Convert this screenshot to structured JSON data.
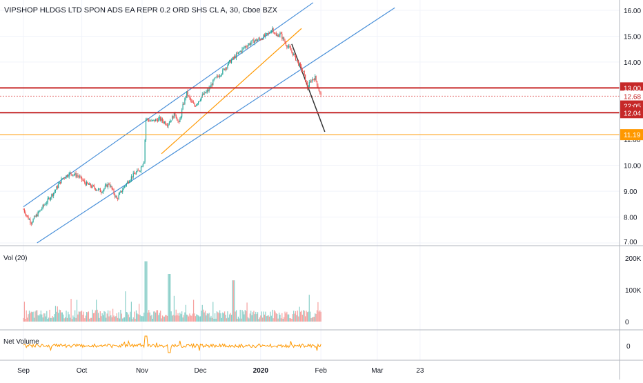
{
  "symbol_title": "VIPSHOP HLDGS LTD SPON ADS EA REPR 0.2 ORD SHS CL A, 30, Cboe BZX",
  "vol_label": "Vol (20)",
  "net_volume_label": "Net Volume",
  "chart_data": {
    "type": "candlestick",
    "title": "VIPSHOP HLDGS LTD SPON ADS EA REPR 0.2 ORD SHS CL A, 30, Cboe BZX",
    "price_axis": {
      "min": 7.0,
      "max": 16.0,
      "ticks": [
        "16.00",
        "15.00",
        "14.00",
        "13.00",
        "12.00",
        "11.00",
        "10.00",
        "9.00",
        "8.00",
        "7.00"
      ]
    },
    "price_labels": [
      {
        "text": "13.00",
        "value": 13.0,
        "bg": "#c62828",
        "color": "#ffffff"
      },
      {
        "text": "12.68",
        "value": 12.68,
        "bg": "#ffffff",
        "color": "#c62828"
      },
      {
        "text": "22:05",
        "value": 12.3,
        "bg": "#c62828",
        "color": "#ffffff"
      },
      {
        "text": "12.04",
        "value": 12.04,
        "bg": "#c62828",
        "color": "#ffffff"
      },
      {
        "text": "11.19",
        "value": 11.19,
        "bg": "#ff9800",
        "color": "#ffffff"
      }
    ],
    "horizontal_lines": [
      {
        "value": 13.0,
        "color": "#c62828",
        "width": 2
      },
      {
        "value": 12.04,
        "color": "#c62828",
        "width": 2
      },
      {
        "value": 11.19,
        "color": "#ff9800",
        "width": 1
      },
      {
        "value": 12.68,
        "color": "#e57373",
        "width": 1,
        "dashed": true
      }
    ],
    "x_labels": [
      "Sep",
      "Oct",
      "Nov",
      "Dec",
      "2020",
      "Feb",
      "Mar",
      "23"
    ],
    "x_label_days": [
      0,
      30,
      61,
      91,
      122,
      153,
      182,
      204
    ],
    "last_data_day": 153,
    "price_path": [
      [
        0,
        8.3
      ],
      [
        2,
        8.0
      ],
      [
        4,
        7.8
      ],
      [
        8,
        8.2
      ],
      [
        12,
        8.6
      ],
      [
        16,
        9.0
      ],
      [
        20,
        9.5
      ],
      [
        24,
        9.7
      ],
      [
        28,
        9.6
      ],
      [
        32,
        9.3
      ],
      [
        36,
        9.15
      ],
      [
        40,
        9.0
      ],
      [
        44,
        9.3
      ],
      [
        48,
        8.7
      ],
      [
        52,
        9.2
      ],
      [
        56,
        9.6
      ],
      [
        60,
        9.85
      ],
      [
        62,
        10.2
      ],
      [
        63,
        11.8
      ],
      [
        66,
        11.7
      ],
      [
        70,
        11.8
      ],
      [
        74,
        11.6
      ],
      [
        78,
        12.0
      ],
      [
        80,
        11.6
      ],
      [
        82,
        12.3
      ],
      [
        84,
        12.8
      ],
      [
        86,
        12.5
      ],
      [
        88,
        12.3
      ],
      [
        92,
        12.7
      ],
      [
        95,
        12.9
      ],
      [
        98,
        13.3
      ],
      [
        102,
        13.6
      ],
      [
        106,
        14.0
      ],
      [
        110,
        14.3
      ],
      [
        114,
        14.6
      ],
      [
        118,
        14.8
      ],
      [
        122,
        14.9
      ],
      [
        126,
        15.1
      ],
      [
        128,
        15.3
      ],
      [
        130,
        15.0
      ],
      [
        132,
        15.1
      ],
      [
        135,
        14.7
      ],
      [
        138,
        14.4
      ],
      [
        141,
        14.0
      ],
      [
        144,
        13.6
      ],
      [
        146,
        13.0
      ],
      [
        148,
        13.3
      ],
      [
        150,
        13.4
      ],
      [
        152,
        12.9
      ],
      [
        153,
        12.68
      ]
    ],
    "volume_axis": {
      "ticks": [
        "200K",
        "100K",
        "0"
      ]
    },
    "net_volume_axis": {
      "ticks": [
        "0"
      ]
    },
    "trend_lines": [
      {
        "name": "upper-channel",
        "color": "#4a90d9",
        "from": [
          0,
          8.4
        ],
        "to": [
          149,
          16.3
        ]
      },
      {
        "name": "middle-channel",
        "color": "#4a90d9",
        "from": [
          7,
          7.0
        ],
        "to": [
          191,
          16.1
        ]
      },
      {
        "name": "inner-orange",
        "color": "#ff9800",
        "from": [
          71,
          10.45
        ],
        "to": [
          143,
          15.3
        ]
      },
      {
        "name": "breakdown",
        "color": "#333333",
        "from": [
          138,
          14.7
        ],
        "to": [
          155,
          11.3
        ]
      }
    ]
  },
  "colors": {
    "up": "#26a69a",
    "down": "#ef5350",
    "axis_text": "#131722",
    "grid": "#f0f3fa",
    "net_volume": "#ff9800"
  }
}
